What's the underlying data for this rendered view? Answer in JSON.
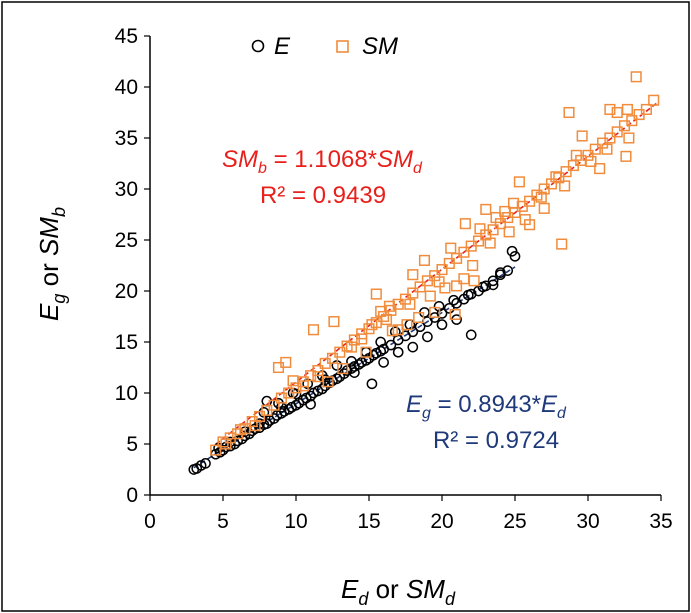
{
  "chart_data": {
    "type": "scatter",
    "title": "",
    "xlabel": {
      "base1": "E",
      "sub1": "d",
      "mid": " or ",
      "base2": "SM",
      "sub2": "d"
    },
    "ylabel": {
      "base1": "E",
      "sub1": "g",
      "mid": " or ",
      "base2": "SM",
      "sub2": "b"
    },
    "xlim": [
      0,
      35
    ],
    "ylim": [
      0,
      45
    ],
    "xticks": [
      "0",
      "5",
      "10",
      "15",
      "20",
      "25",
      "30",
      "35"
    ],
    "yticks": [
      "0",
      "5",
      "10",
      "15",
      "20",
      "25",
      "30",
      "35",
      "40",
      "45"
    ],
    "grid": false,
    "legend_position": "top",
    "series": [
      {
        "name": "E",
        "marker": "circle",
        "color": "#000000",
        "points": [
          [
            3.0,
            2.5
          ],
          [
            3.2,
            2.6
          ],
          [
            3.5,
            2.9
          ],
          [
            3.8,
            3.1
          ],
          [
            4.5,
            4.0
          ],
          [
            4.8,
            4.2
          ],
          [
            5.0,
            4.4
          ],
          [
            5.2,
            4.7
          ],
          [
            5.5,
            4.8
          ],
          [
            5.8,
            5.0
          ],
          [
            6.0,
            5.3
          ],
          [
            6.3,
            5.5
          ],
          [
            6.5,
            5.8
          ],
          [
            6.8,
            6.0
          ],
          [
            7.0,
            6.3
          ],
          [
            7.2,
            6.5
          ],
          [
            7.5,
            6.6
          ],
          [
            7.8,
            6.9
          ],
          [
            8.0,
            7.0
          ],
          [
            8.2,
            7.3
          ],
          [
            8.5,
            7.5
          ],
          [
            8.7,
            7.8
          ],
          [
            9.0,
            8.0
          ],
          [
            9.2,
            8.2
          ],
          [
            9.5,
            8.4
          ],
          [
            9.7,
            8.6
          ],
          [
            10.0,
            8.8
          ],
          [
            10.2,
            9.0
          ],
          [
            10.5,
            9.3
          ],
          [
            10.7,
            9.5
          ],
          [
            11.0,
            9.7
          ],
          [
            11.2,
            10.0
          ],
          [
            11.5,
            10.2
          ],
          [
            11.8,
            10.4
          ],
          [
            12.0,
            10.7
          ],
          [
            12.3,
            11.0
          ],
          [
            12.5,
            11.2
          ],
          [
            12.8,
            11.4
          ],
          [
            13.0,
            11.6
          ],
          [
            13.3,
            11.9
          ],
          [
            13.5,
            12.2
          ],
          [
            13.8,
            12.4
          ],
          [
            14.0,
            12.6
          ],
          [
            14.3,
            12.8
          ],
          [
            14.5,
            13.0
          ],
          [
            14.8,
            13.2
          ],
          [
            15.0,
            13.4
          ],
          [
            15.3,
            13.7
          ],
          [
            15.5,
            13.9
          ],
          [
            15.8,
            14.1
          ],
          [
            16.0,
            14.3
          ],
          [
            16.5,
            14.7
          ],
          [
            17.0,
            15.2
          ],
          [
            17.5,
            15.6
          ],
          [
            18.0,
            16.0
          ],
          [
            18.5,
            16.5
          ],
          [
            19.0,
            17.0
          ],
          [
            19.5,
            17.4
          ],
          [
            20.0,
            17.8
          ],
          [
            20.5,
            18.3
          ],
          [
            21.0,
            18.8
          ],
          [
            21.5,
            19.2
          ],
          [
            22.0,
            19.7
          ],
          [
            22.5,
            20.0
          ],
          [
            23.0,
            20.5
          ],
          [
            23.5,
            21.0
          ],
          [
            24.0,
            21.6
          ],
          [
            24.5,
            22.0
          ],
          [
            25.0,
            23.4
          ],
          [
            24.8,
            23.9
          ],
          [
            24.0,
            21.8
          ],
          [
            23.5,
            20.6
          ],
          [
            22.0,
            15.7
          ],
          [
            21.0,
            17.2
          ],
          [
            20.0,
            16.7
          ],
          [
            19.0,
            15.5
          ],
          [
            18.0,
            14.5
          ],
          [
            17.0,
            14.0
          ],
          [
            15.2,
            10.9
          ],
          [
            16.0,
            13.0
          ],
          [
            14.0,
            12.0
          ],
          [
            12.0,
            11.3
          ],
          [
            11.0,
            8.9
          ],
          [
            10.0,
            9.9
          ],
          [
            9.0,
            8.6
          ],
          [
            8.0,
            9.2
          ],
          [
            7.5,
            7.0
          ],
          [
            6.5,
            6.2
          ],
          [
            5.5,
            5.2
          ],
          [
            4.7,
            4.6
          ],
          [
            19.8,
            18.5
          ],
          [
            18.8,
            17.9
          ],
          [
            17.8,
            16.7
          ],
          [
            16.8,
            16.0
          ],
          [
            15.8,
            15.0
          ],
          [
            14.8,
            14.0
          ],
          [
            13.8,
            13.1
          ],
          [
            12.8,
            12.7
          ],
          [
            11.8,
            11.7
          ],
          [
            10.8,
            10.9
          ],
          [
            9.8,
            10.0
          ],
          [
            8.8,
            9.0
          ],
          [
            7.8,
            8.1
          ],
          [
            20.8,
            19.1
          ],
          [
            21.8,
            19.6
          ],
          [
            22.8,
            20.4
          ]
        ]
      },
      {
        "name": "SM",
        "marker": "square",
        "color": "#F08C3C",
        "points": [
          [
            4.5,
            4.4
          ],
          [
            5.0,
            5.2
          ],
          [
            5.5,
            5.6
          ],
          [
            6.0,
            6.0
          ],
          [
            6.5,
            6.5
          ],
          [
            7.0,
            7.2
          ],
          [
            7.5,
            7.7
          ],
          [
            8.0,
            8.3
          ],
          [
            8.5,
            8.8
          ],
          [
            9.0,
            9.5
          ],
          [
            9.5,
            10.0
          ],
          [
            10.0,
            10.5
          ],
          [
            10.5,
            11.1
          ],
          [
            11.0,
            11.7
          ],
          [
            11.5,
            12.2
          ],
          [
            12.0,
            12.9
          ],
          [
            12.5,
            13.4
          ],
          [
            13.0,
            14.0
          ],
          [
            13.5,
            14.6
          ],
          [
            14.0,
            15.2
          ],
          [
            14.5,
            15.8
          ],
          [
            15.0,
            16.3
          ],
          [
            15.5,
            16.9
          ],
          [
            16.0,
            17.5
          ],
          [
            16.5,
            18.1
          ],
          [
            17.0,
            18.7
          ],
          [
            17.5,
            19.2
          ],
          [
            18.0,
            19.8
          ],
          [
            18.5,
            20.4
          ],
          [
            19.0,
            21.0
          ],
          [
            19.5,
            21.5
          ],
          [
            20.0,
            22.1
          ],
          [
            20.5,
            22.7
          ],
          [
            21.0,
            23.2
          ],
          [
            21.5,
            23.8
          ],
          [
            22.0,
            24.4
          ],
          [
            22.5,
            24.9
          ],
          [
            23.0,
            25.5
          ],
          [
            23.5,
            26.0
          ],
          [
            24.0,
            26.6
          ],
          [
            24.5,
            27.2
          ],
          [
            25.0,
            27.7
          ],
          [
            25.5,
            28.3
          ],
          [
            26.0,
            28.8
          ],
          [
            26.5,
            29.4
          ],
          [
            27.0,
            30.0
          ],
          [
            27.5,
            30.5
          ],
          [
            28.0,
            31.1
          ],
          [
            28.5,
            31.7
          ],
          [
            29.0,
            32.3
          ],
          [
            29.5,
            32.8
          ],
          [
            30.0,
            33.3
          ],
          [
            30.5,
            33.9
          ],
          [
            31.0,
            34.5
          ],
          [
            31.5,
            35.0
          ],
          [
            32.0,
            35.6
          ],
          [
            32.5,
            36.2
          ],
          [
            33.0,
            36.7
          ],
          [
            33.5,
            37.3
          ],
          [
            34.0,
            37.8
          ],
          [
            34.5,
            38.7
          ],
          [
            33.3,
            41.0
          ],
          [
            32.7,
            37.8
          ],
          [
            32.6,
            33.2
          ],
          [
            32.8,
            35.0
          ],
          [
            32.0,
            37.5
          ],
          [
            31.5,
            37.8
          ],
          [
            30.2,
            32.7
          ],
          [
            29.6,
            35.2
          ],
          [
            28.7,
            37.5
          ],
          [
            28.2,
            24.6
          ],
          [
            27.0,
            28.1
          ],
          [
            26.0,
            26.5
          ],
          [
            25.3,
            30.7
          ],
          [
            24.6,
            25.8
          ],
          [
            23.7,
            27.2
          ],
          [
            22.1,
            22.5
          ],
          [
            21.6,
            26.6
          ],
          [
            21.5,
            21.2
          ],
          [
            20.9,
            17.7
          ],
          [
            20.2,
            20.3
          ],
          [
            19.5,
            17.9
          ],
          [
            18.8,
            23.0
          ],
          [
            18.0,
            21.6
          ],
          [
            17.0,
            16.2
          ],
          [
            15.5,
            19.7
          ],
          [
            15.8,
            18.0
          ],
          [
            15.2,
            16.7
          ],
          [
            14.5,
            15.3
          ],
          [
            13.8,
            14.5
          ],
          [
            12.6,
            17.0
          ],
          [
            11.2,
            16.2
          ],
          [
            9.3,
            13.0
          ],
          [
            8.8,
            12.5
          ],
          [
            9.8,
            11.2
          ],
          [
            10.5,
            10.7
          ],
          [
            11.5,
            11.6
          ],
          [
            12.2,
            11.1
          ],
          [
            13.2,
            12.4
          ],
          [
            14.8,
            14.0
          ],
          [
            16.6,
            16.1
          ],
          [
            17.6,
            16.7
          ],
          [
            18.4,
            17.4
          ],
          [
            19.2,
            19.5
          ],
          [
            21.0,
            20.5
          ],
          [
            22.2,
            21.0
          ],
          [
            23.3,
            24.7
          ],
          [
            24.3,
            27.8
          ],
          [
            25.7,
            27.0
          ],
          [
            26.8,
            29.2
          ],
          [
            27.8,
            31.2
          ],
          [
            28.4,
            30.3
          ],
          [
            29.2,
            33.3
          ],
          [
            31.3,
            33.9
          ],
          [
            30.8,
            32.0
          ],
          [
            24.9,
            28.6
          ],
          [
            23.0,
            28.0
          ],
          [
            22.6,
            26.1
          ],
          [
            20.6,
            24.2
          ],
          [
            19.8,
            20.9
          ],
          [
            17.8,
            18.7
          ],
          [
            16.4,
            18.5
          ],
          [
            16.2,
            17.2
          ],
          [
            7.2,
            6.8
          ],
          [
            6.2,
            6.4
          ],
          [
            5.2,
            5.0
          ]
        ]
      }
    ],
    "trendlines": [
      {
        "series": "SM",
        "slope": 1.1068,
        "color": "#E8201C",
        "x_range": [
          4.5,
          34.8
        ],
        "dash": true
      },
      {
        "series": "E",
        "slope": 0.8943,
        "color": "#1F3A7A",
        "x_range": [
          3.0,
          25.0
        ],
        "dash": true
      }
    ],
    "annotations": {
      "sm_equation": {
        "base1": "SM",
        "sub1": "b",
        "mid": " = 1.1068*",
        "base2": "SM",
        "sub2": "d",
        "r2": "R² = 0.9439",
        "color": "#E8201C"
      },
      "e_equation": {
        "base1": "E",
        "sub1": "g",
        "mid": " = 0.8943*",
        "base2": "E",
        "sub2": "d",
        "r2": "R² = 0.9724",
        "color": "#1F3A7A"
      }
    }
  }
}
